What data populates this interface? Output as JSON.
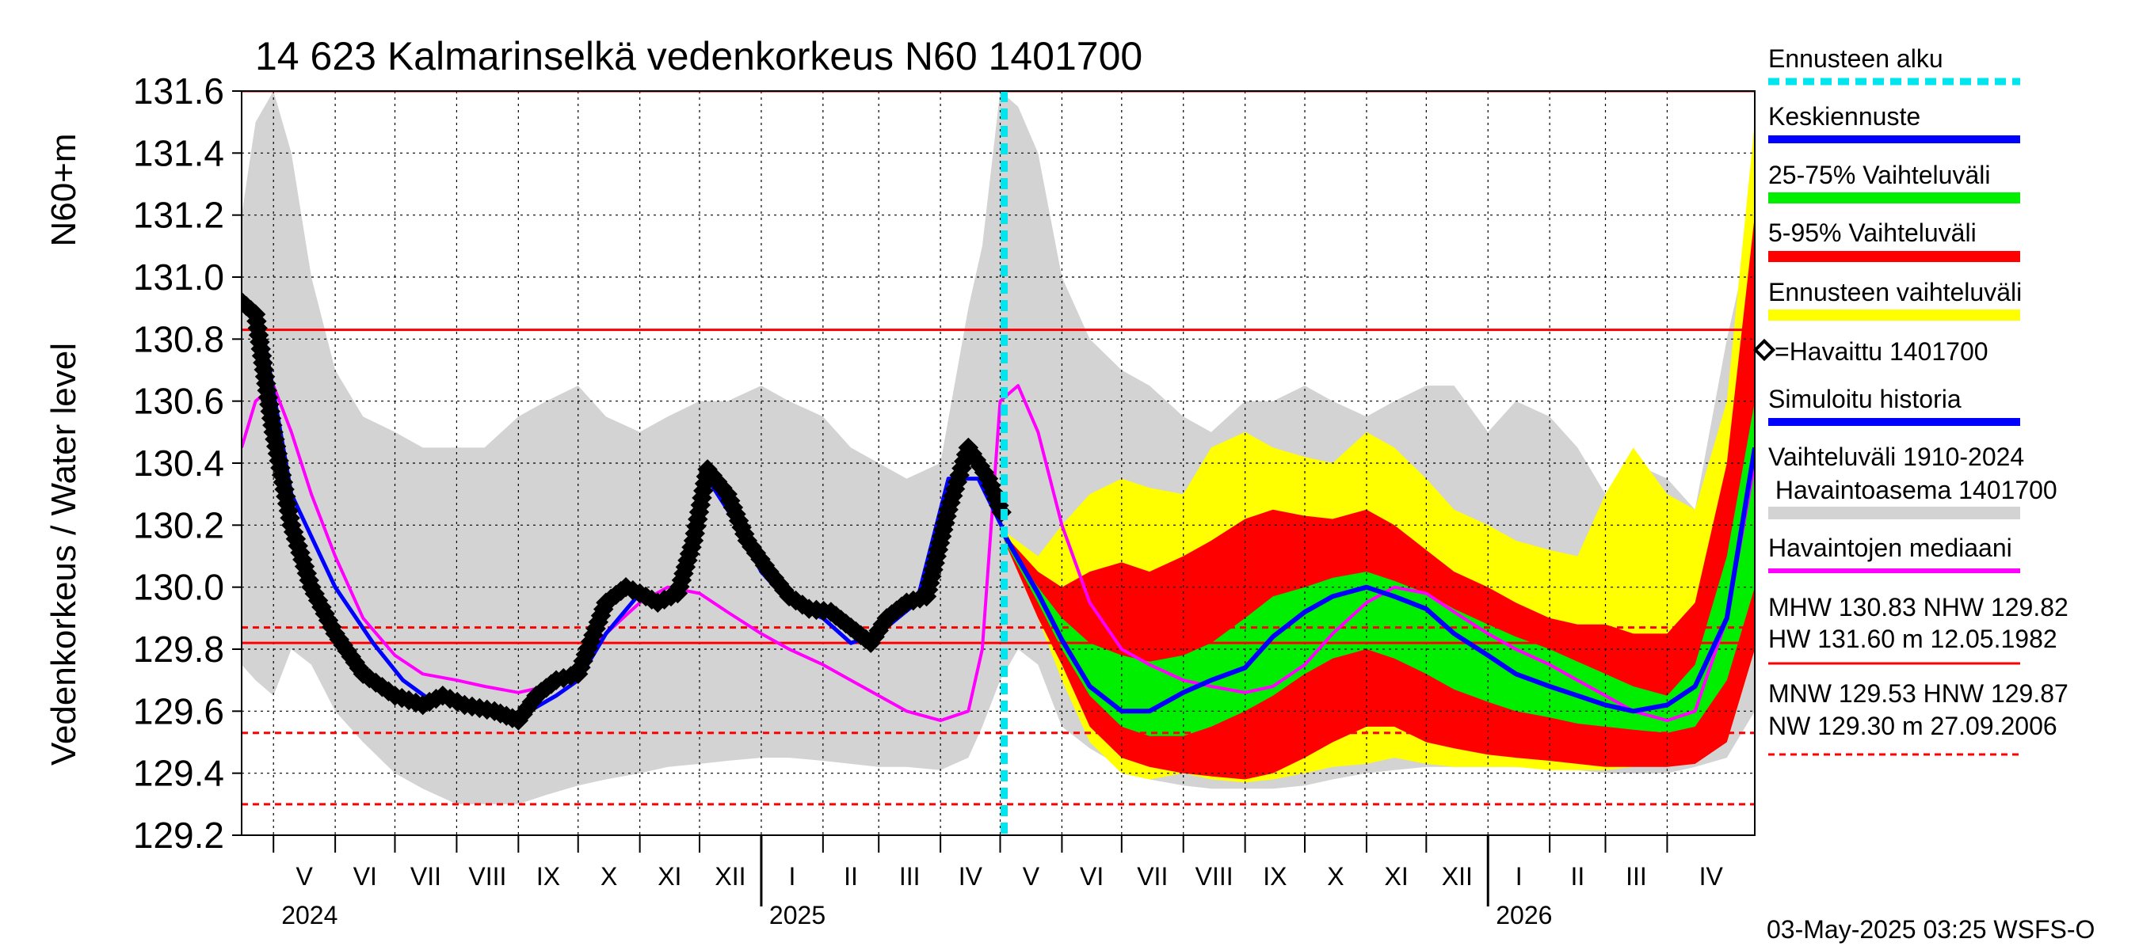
{
  "chart_data": {
    "type": "area",
    "title": "14 623 Kalmarinselkä vedenkorkeus N60 1401700",
    "ylabel": "Vedenkorkeus / Water level",
    "ylabel_unit": "N60+m",
    "ylim": [
      129.2,
      131.6
    ],
    "yticks": [
      "129.2",
      "129.4",
      "129.6",
      "129.8",
      "130.0",
      "130.2",
      "130.4",
      "130.6",
      "130.8",
      "131.0",
      "131.2",
      "131.4",
      "131.6"
    ],
    "x_start": "2024-04-15",
    "x_end": "2026-05-15",
    "forecast_start": "2025-05-03",
    "month_labels": [
      {
        "label": "V",
        "date": "2024-05-01"
      },
      {
        "label": "VI",
        "date": "2024-06-01"
      },
      {
        "label": "VII",
        "date": "2024-07-01"
      },
      {
        "label": "VIII",
        "date": "2024-08-01"
      },
      {
        "label": "IX",
        "date": "2024-09-01"
      },
      {
        "label": "X",
        "date": "2024-10-01"
      },
      {
        "label": "XI",
        "date": "2024-11-01"
      },
      {
        "label": "XII",
        "date": "2024-12-01"
      },
      {
        "label": "I",
        "date": "2025-01-01"
      },
      {
        "label": "II",
        "date": "2025-02-01"
      },
      {
        "label": "III",
        "date": "2025-03-01"
      },
      {
        "label": "IV",
        "date": "2025-04-01"
      },
      {
        "label": "V",
        "date": "2025-05-01"
      },
      {
        "label": "VI",
        "date": "2025-06-01"
      },
      {
        "label": "VII",
        "date": "2025-07-01"
      },
      {
        "label": "VIII",
        "date": "2025-08-01"
      },
      {
        "label": "IX",
        "date": "2025-09-01"
      },
      {
        "label": "X",
        "date": "2025-10-01"
      },
      {
        "label": "XI",
        "date": "2025-11-01"
      },
      {
        "label": "XII",
        "date": "2025-12-01"
      },
      {
        "label": "I",
        "date": "2026-01-01"
      },
      {
        "label": "II",
        "date": "2026-02-01"
      },
      {
        "label": "III",
        "date": "2026-03-01"
      },
      {
        "label": "IV",
        "date": "2026-04-01"
      }
    ],
    "year_labels": [
      {
        "label": "2024",
        "date": "2024-05-01"
      },
      {
        "label": "2025",
        "date": "2025-01-01"
      },
      {
        "label": "2026",
        "date": "2026-01-01"
      }
    ],
    "reference_lines": [
      {
        "name": "HW",
        "value": 131.6,
        "style": "solid"
      },
      {
        "name": "MHW",
        "value": 130.83,
        "style": "solid"
      },
      {
        "name": "NHW",
        "value": 129.82,
        "style": "solid"
      },
      {
        "name": "HNW",
        "value": 129.87,
        "style": "dashed"
      },
      {
        "name": "MNW",
        "value": 129.53,
        "style": "dashed"
      },
      {
        "name": "NW",
        "value": 129.3,
        "style": "dashed"
      }
    ],
    "series": [
      {
        "key": "historical_range",
        "name": "Vaihteluväli 1910-2024 Havaintoasema 1401700",
        "color": "#d3d3d3",
        "x": [
          "2024-04-15",
          "2024-04-22",
          "2024-05-01",
          "2024-05-10",
          "2024-05-20",
          "2024-06-01",
          "2024-06-15",
          "2024-07-01",
          "2024-07-15",
          "2024-08-01",
          "2024-08-15",
          "2024-09-01",
          "2024-09-15",
          "2024-10-01",
          "2024-10-15",
          "2024-11-01",
          "2024-11-15",
          "2024-12-01",
          "2024-12-15",
          "2025-01-01",
          "2025-01-15",
          "2025-02-01",
          "2025-02-15",
          "2025-03-01",
          "2025-03-15",
          "2025-04-01",
          "2025-04-15",
          "2025-04-22",
          "2025-05-01",
          "2025-05-10",
          "2025-05-20",
          "2025-06-01",
          "2025-06-15",
          "2025-07-01",
          "2025-07-15",
          "2025-08-01",
          "2025-08-15",
          "2025-09-01",
          "2025-09-15",
          "2025-10-01",
          "2025-10-15",
          "2025-11-01",
          "2025-11-15",
          "2025-12-01",
          "2025-12-15",
          "2026-01-01",
          "2026-01-15",
          "2026-02-01",
          "2026-02-15",
          "2026-03-01",
          "2026-03-15",
          "2026-04-01",
          "2026-04-15",
          "2026-05-01",
          "2026-05-15"
        ],
        "high": [
          131.2,
          131.5,
          131.6,
          131.4,
          131.0,
          130.7,
          130.55,
          130.5,
          130.45,
          130.45,
          130.45,
          130.55,
          130.6,
          130.65,
          130.55,
          130.5,
          130.55,
          130.6,
          130.6,
          130.65,
          130.6,
          130.55,
          130.45,
          130.4,
          130.35,
          130.4,
          130.9,
          131.1,
          131.6,
          131.55,
          131.4,
          131.0,
          130.8,
          130.7,
          130.65,
          130.55,
          130.5,
          130.6,
          130.6,
          130.65,
          130.6,
          130.55,
          130.6,
          130.65,
          130.65,
          130.5,
          130.6,
          130.55,
          130.45,
          130.3,
          130.4,
          130.35,
          130.25,
          130.8,
          131.2
        ],
        "low": [
          129.75,
          129.7,
          129.65,
          129.8,
          129.75,
          129.6,
          129.5,
          129.4,
          129.35,
          129.3,
          129.3,
          129.3,
          129.33,
          129.36,
          129.38,
          129.4,
          129.42,
          129.43,
          129.44,
          129.45,
          129.45,
          129.44,
          129.43,
          129.42,
          129.42,
          129.41,
          129.45,
          129.55,
          129.7,
          129.8,
          129.75,
          129.55,
          129.48,
          129.42,
          129.38,
          129.36,
          129.35,
          129.35,
          129.35,
          129.36,
          129.38,
          129.4,
          129.41,
          129.42,
          129.42,
          129.42,
          129.42,
          129.42,
          129.41,
          129.4,
          129.4,
          129.4,
          129.42,
          129.45,
          129.6
        ]
      },
      {
        "key": "forecast_range",
        "name": "Ennusteen vaihteluväli",
        "color": "#ffff00",
        "x": [
          "2025-05-03",
          "2025-05-20",
          "2025-06-01",
          "2025-06-15",
          "2025-07-01",
          "2025-07-15",
          "2025-08-01",
          "2025-08-15",
          "2025-09-01",
          "2025-09-15",
          "2025-10-01",
          "2025-10-15",
          "2025-11-01",
          "2025-11-15",
          "2025-12-01",
          "2025-12-15",
          "2026-01-01",
          "2026-01-15",
          "2026-02-01",
          "2026-02-15",
          "2026-03-01",
          "2026-03-15",
          "2026-04-01",
          "2026-04-15",
          "2026-05-01",
          "2026-05-15"
        ],
        "high": [
          130.18,
          130.1,
          130.2,
          130.3,
          130.35,
          130.32,
          130.3,
          130.45,
          130.5,
          130.45,
          130.42,
          130.4,
          130.5,
          130.45,
          130.35,
          130.25,
          130.2,
          130.15,
          130.12,
          130.1,
          130.3,
          130.45,
          130.3,
          130.25,
          130.6,
          131.5
        ],
        "low": [
          130.15,
          129.9,
          129.7,
          129.5,
          129.4,
          129.38,
          129.4,
          129.38,
          129.37,
          129.38,
          129.4,
          129.42,
          129.43,
          129.45,
          129.43,
          129.42,
          129.42,
          129.42,
          129.41,
          129.41,
          129.41,
          129.42,
          129.43,
          129.44,
          129.5,
          129.8
        ]
      },
      {
        "key": "range_5_95",
        "name": "5-95% Vaihteluväli",
        "color": "#ff0000",
        "x": [
          "2025-05-03",
          "2025-05-20",
          "2025-06-01",
          "2025-06-15",
          "2025-07-01",
          "2025-07-15",
          "2025-08-01",
          "2025-08-15",
          "2025-09-01",
          "2025-09-15",
          "2025-10-01",
          "2025-10-15",
          "2025-11-01",
          "2025-11-15",
          "2025-12-01",
          "2025-12-15",
          "2026-01-01",
          "2026-01-15",
          "2026-02-01",
          "2026-02-15",
          "2026-03-01",
          "2026-03-15",
          "2026-04-01",
          "2026-04-15",
          "2026-05-01",
          "2026-05-15"
        ],
        "high": [
          130.17,
          130.05,
          130.0,
          130.05,
          130.08,
          130.05,
          130.1,
          130.15,
          130.22,
          130.25,
          130.23,
          130.22,
          130.25,
          130.2,
          130.12,
          130.05,
          130.0,
          129.95,
          129.9,
          129.88,
          129.88,
          129.85,
          129.85,
          129.95,
          130.4,
          131.2
        ],
        "low": [
          130.15,
          129.9,
          129.75,
          129.55,
          129.45,
          129.42,
          129.4,
          129.39,
          129.38,
          129.4,
          129.45,
          129.5,
          129.55,
          129.55,
          129.5,
          129.48,
          129.46,
          129.45,
          129.44,
          129.43,
          129.42,
          129.42,
          129.42,
          129.43,
          129.5,
          129.8
        ]
      },
      {
        "key": "range_25_75",
        "name": "25-75% Vaihteluväli",
        "color": "#00ee00",
        "x": [
          "2025-05-03",
          "2025-05-20",
          "2025-06-01",
          "2025-06-15",
          "2025-07-01",
          "2025-07-15",
          "2025-08-01",
          "2025-08-15",
          "2025-09-01",
          "2025-09-15",
          "2025-10-01",
          "2025-10-15",
          "2025-11-01",
          "2025-11-15",
          "2025-12-01",
          "2025-12-15",
          "2026-01-01",
          "2026-01-15",
          "2026-02-01",
          "2026-02-15",
          "2026-03-01",
          "2026-03-15",
          "2026-04-01",
          "2026-04-15",
          "2026-05-01",
          "2026-05-15"
        ],
        "high": [
          130.16,
          130.0,
          129.9,
          129.82,
          129.78,
          129.76,
          129.78,
          129.82,
          129.9,
          129.97,
          130.0,
          130.03,
          130.05,
          130.02,
          129.98,
          129.93,
          129.88,
          129.84,
          129.8,
          129.76,
          129.72,
          129.68,
          129.65,
          129.75,
          130.1,
          130.6
        ],
        "low": [
          130.15,
          129.95,
          129.8,
          129.65,
          129.55,
          129.52,
          129.52,
          129.55,
          129.6,
          129.65,
          129.72,
          129.77,
          129.8,
          129.77,
          129.72,
          129.67,
          129.63,
          129.6,
          129.58,
          129.56,
          129.55,
          129.54,
          129.53,
          129.55,
          129.7,
          130.0
        ]
      },
      {
        "key": "median",
        "name": "Havaintojen mediaani",
        "color": "#ff00ff",
        "x": [
          "2024-04-15",
          "2024-04-22",
          "2024-05-01",
          "2024-05-10",
          "2024-05-20",
          "2024-06-01",
          "2024-06-15",
          "2024-07-01",
          "2024-07-15",
          "2024-08-01",
          "2024-08-15",
          "2024-09-01",
          "2024-09-15",
          "2024-10-01",
          "2024-10-15",
          "2024-11-01",
          "2024-11-15",
          "2024-12-01",
          "2024-12-15",
          "2025-01-01",
          "2025-01-15",
          "2025-02-01",
          "2025-02-15",
          "2025-03-01",
          "2025-03-15",
          "2025-04-01",
          "2025-04-15",
          "2025-04-22",
          "2025-05-01",
          "2025-05-10",
          "2025-05-20",
          "2025-06-01",
          "2025-06-15",
          "2025-07-01",
          "2025-07-15",
          "2025-08-01",
          "2025-08-15",
          "2025-09-01",
          "2025-09-15",
          "2025-10-01",
          "2025-10-15",
          "2025-11-01",
          "2025-11-15",
          "2025-12-01",
          "2025-12-15",
          "2026-01-01",
          "2026-01-15",
          "2026-02-01",
          "2026-02-15",
          "2026-03-01",
          "2026-03-15",
          "2026-04-01",
          "2026-04-15",
          "2026-05-01",
          "2026-05-15"
        ],
        "values": [
          130.45,
          130.6,
          130.65,
          130.5,
          130.3,
          130.1,
          129.9,
          129.78,
          129.72,
          129.7,
          129.68,
          129.66,
          129.68,
          129.75,
          129.85,
          129.95,
          130.0,
          129.98,
          129.92,
          129.85,
          129.8,
          129.75,
          129.7,
          129.65,
          129.6,
          129.57,
          129.6,
          129.8,
          130.6,
          130.65,
          130.5,
          130.2,
          129.95,
          129.8,
          129.75,
          129.7,
          129.68,
          129.66,
          129.68,
          129.75,
          129.85,
          129.95,
          130.0,
          129.98,
          129.92,
          129.85,
          129.8,
          129.75,
          129.7,
          129.65,
          129.6,
          129.57,
          129.6,
          129.9,
          130.4
        ]
      },
      {
        "key": "simulated",
        "name": "Simuloitu historia",
        "color": "#0000ff",
        "x": [
          "2024-04-15",
          "2024-04-25",
          "2024-05-10",
          "2024-06-01",
          "2024-06-20",
          "2024-07-05",
          "2024-07-20",
          "2024-08-01",
          "2024-08-15",
          "2024-09-01",
          "2024-09-20",
          "2024-10-01",
          "2024-10-15",
          "2024-11-01",
          "2024-11-15",
          "2024-11-25",
          "2024-12-05",
          "2024-12-20",
          "2025-01-01",
          "2025-01-15",
          "2025-02-01",
          "2025-02-15",
          "2025-03-01",
          "2025-03-20",
          "2025-04-05",
          "2025-04-20",
          "2025-05-03"
        ],
        "values": [
          130.9,
          130.85,
          130.3,
          130.0,
          129.82,
          129.7,
          129.63,
          129.65,
          129.6,
          129.58,
          129.65,
          129.7,
          129.85,
          129.98,
          129.95,
          130.1,
          130.35,
          130.2,
          130.05,
          129.95,
          129.9,
          129.82,
          129.85,
          129.95,
          130.35,
          130.35,
          130.18
        ]
      },
      {
        "key": "forecast_mean",
        "name": "Keskiennuste",
        "color": "#0000ff",
        "x": [
          "2025-05-03",
          "2025-05-20",
          "2025-06-01",
          "2025-06-15",
          "2025-07-01",
          "2025-07-15",
          "2025-08-01",
          "2025-08-15",
          "2025-09-01",
          "2025-09-15",
          "2025-10-01",
          "2025-10-15",
          "2025-11-01",
          "2025-11-15",
          "2025-12-01",
          "2025-12-15",
          "2026-01-01",
          "2026-01-15",
          "2026-02-01",
          "2026-02-15",
          "2026-03-01",
          "2026-03-15",
          "2026-04-01",
          "2026-04-15",
          "2026-05-01",
          "2026-05-15"
        ],
        "values": [
          130.17,
          129.98,
          129.83,
          129.68,
          129.6,
          129.6,
          129.66,
          129.7,
          129.74,
          129.84,
          129.92,
          129.97,
          130.0,
          129.97,
          129.93,
          129.85,
          129.78,
          129.72,
          129.68,
          129.65,
          129.62,
          129.6,
          129.62,
          129.68,
          129.9,
          130.45
        ]
      },
      {
        "key": "observed",
        "name": "=Havaittu 1401700",
        "color": "#000000",
        "x": [
          "2024-04-15",
          "2024-04-22",
          "2024-05-01",
          "2024-05-10",
          "2024-05-20",
          "2024-06-01",
          "2024-06-15",
          "2024-07-01",
          "2024-07-15",
          "2024-07-25",
          "2024-08-05",
          "2024-08-20",
          "2024-09-01",
          "2024-09-10",
          "2024-09-20",
          "2024-10-01",
          "2024-10-15",
          "2024-10-25",
          "2024-11-01",
          "2024-11-10",
          "2024-11-20",
          "2024-11-28",
          "2024-12-05",
          "2024-12-15",
          "2024-12-25",
          "2025-01-05",
          "2025-01-15",
          "2025-01-25",
          "2025-02-05",
          "2025-02-15",
          "2025-02-25",
          "2025-03-05",
          "2025-03-15",
          "2025-03-25",
          "2025-04-05",
          "2025-04-15",
          "2025-04-25",
          "2025-05-03"
        ],
        "values": [
          130.92,
          130.88,
          130.5,
          130.2,
          130.0,
          129.85,
          129.72,
          129.65,
          129.62,
          129.65,
          129.62,
          129.6,
          129.57,
          129.65,
          129.7,
          129.72,
          129.95,
          130.0,
          129.98,
          129.95,
          129.98,
          130.15,
          130.38,
          130.3,
          130.15,
          130.05,
          129.97,
          129.93,
          129.92,
          129.87,
          129.82,
          129.9,
          129.95,
          129.97,
          130.25,
          130.45,
          130.35,
          130.22
        ]
      }
    ]
  },
  "legend": {
    "forecast_start": "Ennusteen alku",
    "forecast_mean": "Keskiennuste",
    "range_25_75": "25-75% Vaihteluväli",
    "range_5_95": "5-95% Vaihteluväli",
    "forecast_range": "Ennusteen vaihteluväli",
    "observed": "=Havaittu 1401700",
    "simulated": "Simuloitu historia",
    "historical_line1": "Vaihteluväli 1910-2024",
    "historical_line2": " Havaintoasema 1401700",
    "median": "Havaintojen mediaani",
    "stats_high_1": "MHW 130.83 NHW 129.82",
    "stats_high_2": "HW 131.60 m 12.05.1982",
    "stats_low_1": "MNW 129.53 HNW 129.87",
    "stats_low_2": "NW 129.30 m 27.09.2006"
  },
  "footer": "03-May-2025 03:25 WSFS-O",
  "colors": {
    "forecast_start_line": "#00e5ee",
    "reference_red": "#ff0000",
    "grid": "#000000"
  }
}
